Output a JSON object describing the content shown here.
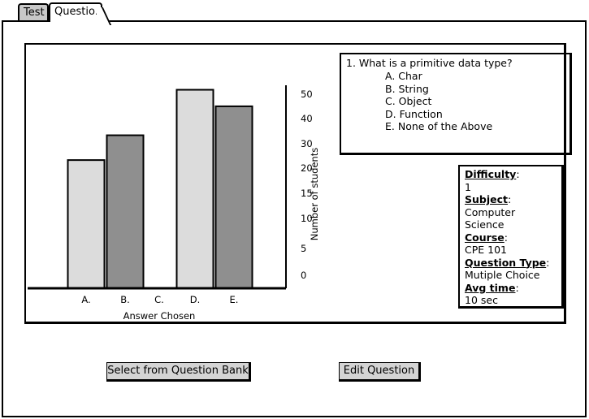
{
  "tabs": [
    {
      "label": "Test",
      "active": false
    },
    {
      "label": "Question",
      "active": true
    }
  ],
  "question": {
    "text": "1. What is a primitive data type?",
    "options": [
      "A. Char",
      "B. String",
      "C. Object",
      "D. Function",
      "E. None of the Above"
    ]
  },
  "info": {
    "difficulty_label": "Difficulty",
    "difficulty_value": "1",
    "subject_label": "Subject",
    "subject_value": "Computer Science",
    "course_label": "Course",
    "course_value": "CPE 101",
    "type_label": "Question Type",
    "type_value": "Mutiple Choice",
    "time_label": "Avg time",
    "time_value": "10 sec"
  },
  "buttons": {
    "bank": "Select from Question Bank",
    "edit": "Edit Question"
  },
  "chart_data": {
    "type": "bar",
    "categories": [
      "A.",
      "B.",
      "C.",
      "D.",
      "E."
    ],
    "values": [
      31,
      37,
      0,
      48,
      44
    ],
    "bar_colors": [
      "#dcdcdc",
      "#8f8f8f",
      "#dcdcdc",
      "#dcdcdc",
      "#8f8f8f"
    ],
    "y_ticks": [
      "0",
      "5",
      "10",
      "15",
      "20",
      "30",
      "40",
      "50"
    ],
    "xlabel": "Answer Chosen",
    "ylabel": "Number of students"
  }
}
